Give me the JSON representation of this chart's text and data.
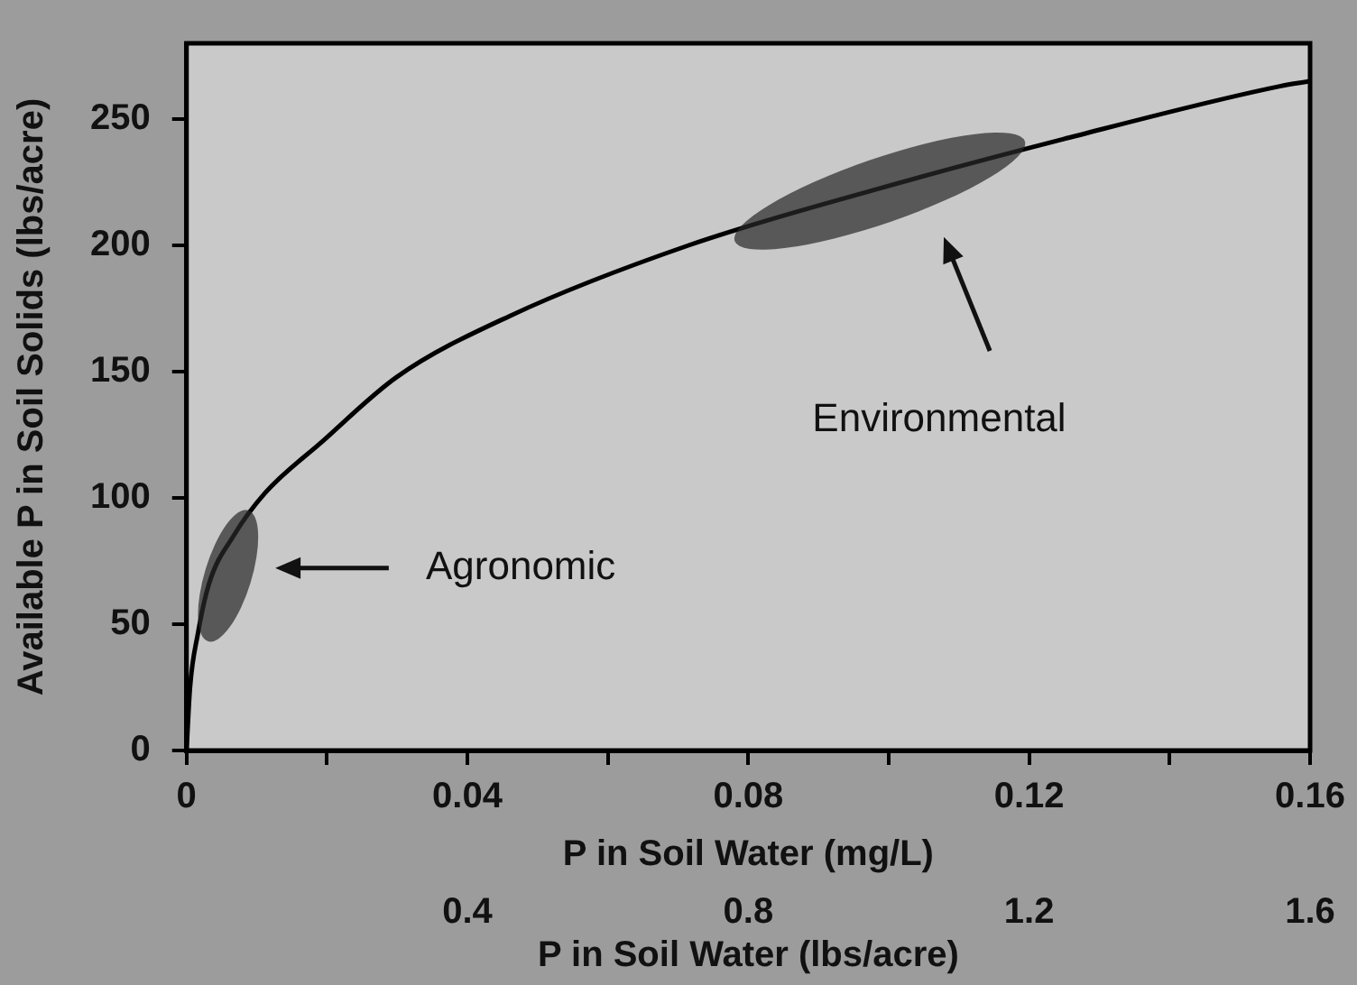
{
  "chart_data": {
    "type": "line",
    "xlabel": "P in Soil Water (mg/L)",
    "x2label": "P in Soil Water (lbs/acre)",
    "ylabel": "Available P in Soil Solids (lbs/acre)",
    "x": [
      0,
      0.0005,
      0.0016,
      0.0032,
      0.0067,
      0.0112,
      0.0192,
      0.03,
      0.046,
      0.0715,
      0.098,
      0.1248,
      0.1557,
      0.16
    ],
    "series": [
      {
        "color": "#000000",
        "values": [
          0,
          25,
          46,
          66,
          85,
          102,
          122,
          148,
          172,
          200,
          222,
          242,
          263,
          265
        ]
      }
    ],
    "xlim": [
      0,
      0.16
    ],
    "xticks": [
      0,
      {
        "value": 0.02,
        "label": null
      },
      0.04,
      {
        "value": 0.06,
        "label": null
      },
      0.08,
      {
        "value": 0.1,
        "label": null
      },
      0.12,
      {
        "value": 0.14,
        "label": null
      },
      0.16
    ],
    "x2lim": [
      0,
      1.6
    ],
    "x2ticks": [
      0.4,
      0.8,
      1.2,
      1.6
    ],
    "ylim": [
      0,
      280
    ],
    "yticks": [
      0,
      50,
      100,
      150,
      200,
      250
    ],
    "annotations": [
      "Agronomic",
      "Environmental"
    ],
    "grid": false,
    "legend": false,
    "marker": "none",
    "line_style": "solid"
  }
}
